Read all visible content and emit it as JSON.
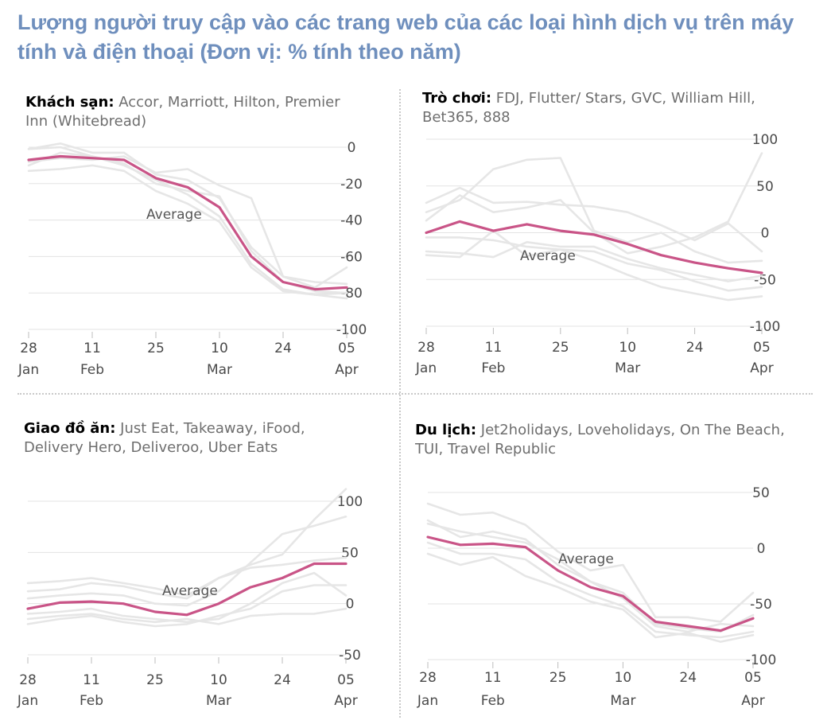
{
  "title": "Lượng người truy cập vào các trang web của các loại hình dịch vụ trên máy tính và điện thoại (Đơn vị: % tính theo năm)",
  "colors": {
    "average": "#c95487",
    "company": "#e6e6e6",
    "grid": "#e3e3e3",
    "title": "#6f8fbd"
  },
  "x_ticks": [
    {
      "day": "28",
      "month": "Jan"
    },
    {
      "day": "11",
      "month": "Feb"
    },
    {
      "day": "25",
      "month": ""
    },
    {
      "day": "10",
      "month": "Mar"
    },
    {
      "day": "24",
      "month": ""
    },
    {
      "day": "05",
      "month": "Apr"
    }
  ],
  "chart_data": [
    {
      "type": "line",
      "category": "Khách sạn:",
      "companies": "Accor, Marriott, Hilton, Premier Inn (Whitebread)",
      "annotation": "Average",
      "ylim": [
        -100,
        0
      ],
      "yticks": [
        0,
        -20,
        -40,
        -60,
        -80,
        -100
      ],
      "x": [
        "28 Jan",
        "4 Feb",
        "11 Feb",
        "18 Feb",
        "25 Feb",
        "3 Mar",
        "10 Mar",
        "17 Mar",
        "24 Mar",
        "31 Mar",
        "5 Apr"
      ],
      "series": [
        {
          "name": "Average",
          "values": [
            -7,
            -5,
            -6,
            -7,
            -17,
            -22,
            -33,
            -60,
            -74,
            -78,
            -77
          ]
        },
        {
          "values": [
            -1,
            2,
            -3,
            -3,
            -15,
            -18,
            -28,
            -55,
            -71,
            -77,
            -66
          ]
        },
        {
          "values": [
            -10,
            -3,
            -5,
            -10,
            -18,
            -26,
            -38,
            -64,
            -78,
            -81,
            -80
          ]
        },
        {
          "values": [
            -13,
            -12,
            -10,
            -13,
            -24,
            -31,
            -41,
            -66,
            -79,
            -81,
            -83
          ]
        },
        {
          "values": [
            -8,
            -6,
            -7,
            -5,
            -14,
            -12,
            -21,
            -28,
            -71,
            -74,
            -75
          ]
        },
        {
          "values": [
            -1,
            0,
            -5,
            -9,
            -20,
            -24,
            -27,
            -57,
            -74,
            -79,
            -80
          ]
        }
      ]
    },
    {
      "type": "line",
      "category": "Trò chơi:",
      "companies": "FDJ, Flutter/ Stars, GVC, William Hill, Bet365, 888",
      "annotation": "Average",
      "ylim": [
        -100,
        100
      ],
      "yticks": [
        100,
        50,
        0,
        -50,
        -100
      ],
      "x": [
        "28 Jan",
        "4 Feb",
        "11 Feb",
        "18 Feb",
        "25 Feb",
        "3 Mar",
        "10 Mar",
        "17 Mar",
        "24 Mar",
        "31 Mar",
        "5 Apr"
      ],
      "series": [
        {
          "name": "Average",
          "values": [
            0,
            12,
            2,
            9,
            2,
            -2,
            -12,
            -24,
            -32,
            -38,
            -43
          ]
        },
        {
          "values": [
            13,
            40,
            22,
            27,
            35,
            0,
            -22,
            -15,
            -5,
            12,
            85
          ]
        },
        {
          "values": [
            32,
            48,
            32,
            33,
            30,
            28,
            22,
            8,
            -8,
            10,
            -20
          ]
        },
        {
          "values": [
            -20,
            -22,
            -26,
            -10,
            -15,
            -15,
            -28,
            -38,
            -45,
            -52,
            -46
          ]
        },
        {
          "values": [
            -5,
            -5,
            -8,
            -15,
            -18,
            -20,
            -33,
            -40,
            -52,
            -62,
            -58
          ]
        },
        {
          "values": [
            -24,
            -26,
            2,
            -25,
            -18,
            -30,
            -45,
            -58,
            -65,
            -72,
            -68
          ]
        },
        {
          "values": [
            22,
            35,
            68,
            78,
            80,
            2,
            -10,
            0,
            -20,
            -32,
            -30
          ]
        }
      ]
    },
    {
      "type": "line",
      "category": "Giao đồ ăn:",
      "companies": "Just Eat, Takeaway, iFood, Delivery Hero, Deliveroo, Uber Eats",
      "annotation": "Average",
      "ylim": [
        -50,
        100
      ],
      "yticks": [
        100,
        50,
        0,
        -50
      ],
      "x": [
        "28 Jan",
        "4 Feb",
        "11 Feb",
        "18 Feb",
        "25 Feb",
        "3 Mar",
        "10 Mar",
        "17 Mar",
        "24 Mar",
        "31 Mar",
        "5 Apr"
      ],
      "series": [
        {
          "name": "Average",
          "values": [
            -5,
            1,
            2,
            0,
            -8,
            -11,
            0,
            16,
            25,
            39,
            39
          ]
        },
        {
          "values": [
            12,
            14,
            20,
            17,
            10,
            5,
            25,
            38,
            48,
            82,
            112
          ]
        },
        {
          "values": [
            5,
            8,
            10,
            8,
            0,
            -2,
            12,
            40,
            68,
            76,
            85
          ]
        },
        {
          "values": [
            -10,
            -8,
            -5,
            -12,
            -15,
            -18,
            -15,
            0,
            20,
            30,
            8
          ]
        },
        {
          "values": [
            -15,
            -12,
            -10,
            -15,
            -18,
            -15,
            -20,
            -12,
            -10,
            -10,
            -5
          ]
        },
        {
          "values": [
            -20,
            -15,
            -12,
            -18,
            -22,
            -20,
            -12,
            -5,
            12,
            18,
            18
          ]
        },
        {
          "values": [
            20,
            22,
            25,
            20,
            15,
            8,
            25,
            35,
            38,
            42,
            45
          ]
        }
      ]
    },
    {
      "type": "line",
      "category": "Du lịch:",
      "companies": "Jet2holidays, Loveholidays, On The Beach, TUI, Travel Republic",
      "annotation": "Average",
      "ylim": [
        -100,
        50
      ],
      "yticks": [
        50,
        0,
        -50,
        -100
      ],
      "x": [
        "28 Jan",
        "4 Feb",
        "11 Feb",
        "18 Feb",
        "25 Feb",
        "3 Mar",
        "10 Mar",
        "17 Mar",
        "24 Mar",
        "31 Mar",
        "5 Apr"
      ],
      "series": [
        {
          "name": "Average",
          "values": [
            10,
            3,
            4,
            1,
            -20,
            -35,
            -43,
            -66,
            -70,
            -74,
            -63
          ]
        },
        {
          "values": [
            40,
            30,
            32,
            21,
            -3,
            -20,
            -15,
            -62,
            -62,
            -66,
            -40
          ]
        },
        {
          "values": [
            22,
            15,
            10,
            5,
            -10,
            -30,
            -40,
            -68,
            -72,
            -75,
            -60
          ]
        },
        {
          "values": [
            5,
            -5,
            -5,
            -10,
            -30,
            -42,
            -52,
            -75,
            -78,
            -80,
            -75
          ]
        },
        {
          "values": [
            -5,
            -15,
            -8,
            -25,
            -35,
            -48,
            -55,
            -80,
            -76,
            -84,
            -78
          ]
        },
        {
          "values": [
            25,
            10,
            15,
            8,
            -15,
            -30,
            -45,
            -70,
            -75,
            -68,
            -70
          ]
        }
      ]
    }
  ]
}
